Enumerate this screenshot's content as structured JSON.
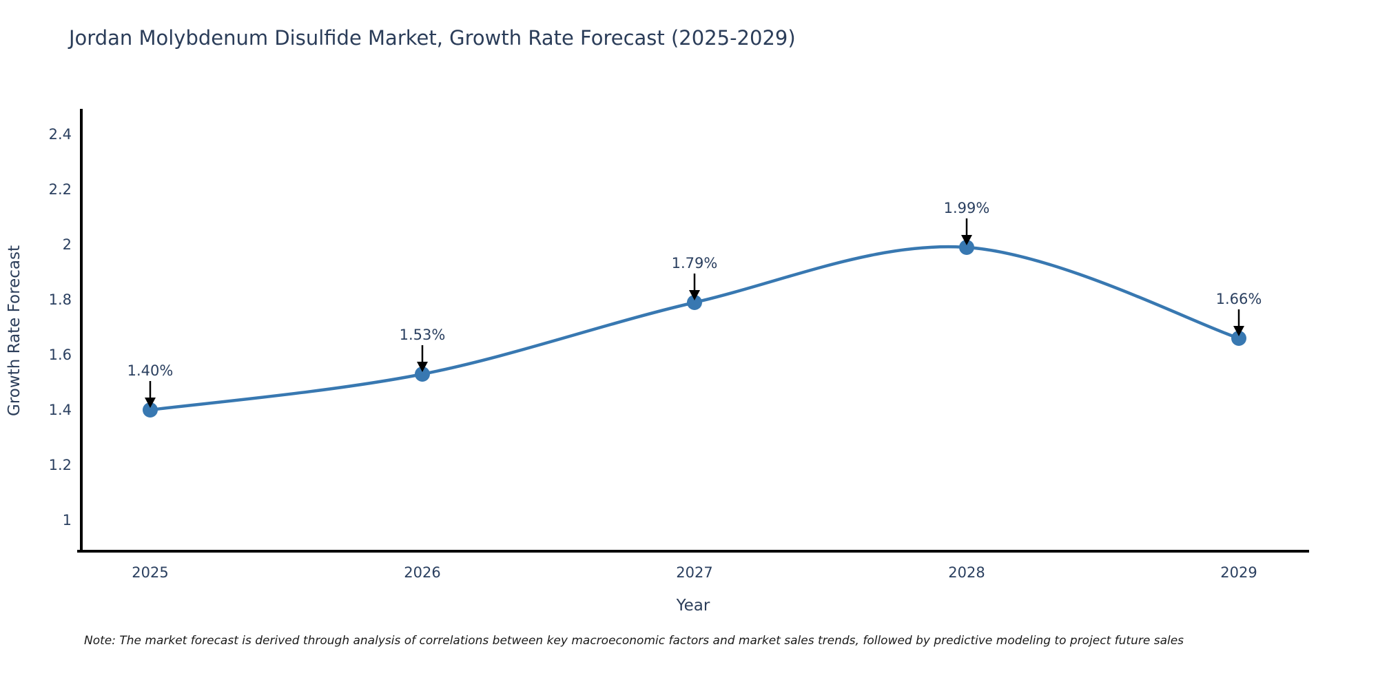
{
  "title": "Jordan Molybdenum Disulfide Market, Growth Rate Forecast (2025-2029)",
  "note": "Note: The market forecast is derived through analysis of correlations between key macroeconomic factors and market sales trends, followed by predictive modeling to project future sales",
  "chart_data": {
    "type": "line",
    "title": "Jordan Molybdenum Disulfide Market, Growth Rate Forecast (2025-2029)",
    "xlabel": "Year",
    "ylabel": "Growth Rate Forecast",
    "x": [
      2025,
      2026,
      2027,
      2028,
      2029
    ],
    "values": [
      1.4,
      1.53,
      1.79,
      1.99,
      1.66
    ],
    "point_labels": [
      "1.40%",
      "1.53%",
      "1.79%",
      "1.99%",
      "1.66%"
    ],
    "yticks": [
      1,
      1.2,
      1.4,
      1.6,
      1.8,
      2,
      2.2,
      2.4
    ],
    "ylim": [
      0.89,
      2.5
    ],
    "grid": false,
    "legend": "none",
    "line_shape": "spline",
    "colors": {
      "line": "#3878b1",
      "marker": "#3878b1",
      "annotation_arrow": "#000000",
      "axis_line": "#000000",
      "chart_text": "#2a3f5f",
      "note_text": "#1a1a1a"
    }
  }
}
